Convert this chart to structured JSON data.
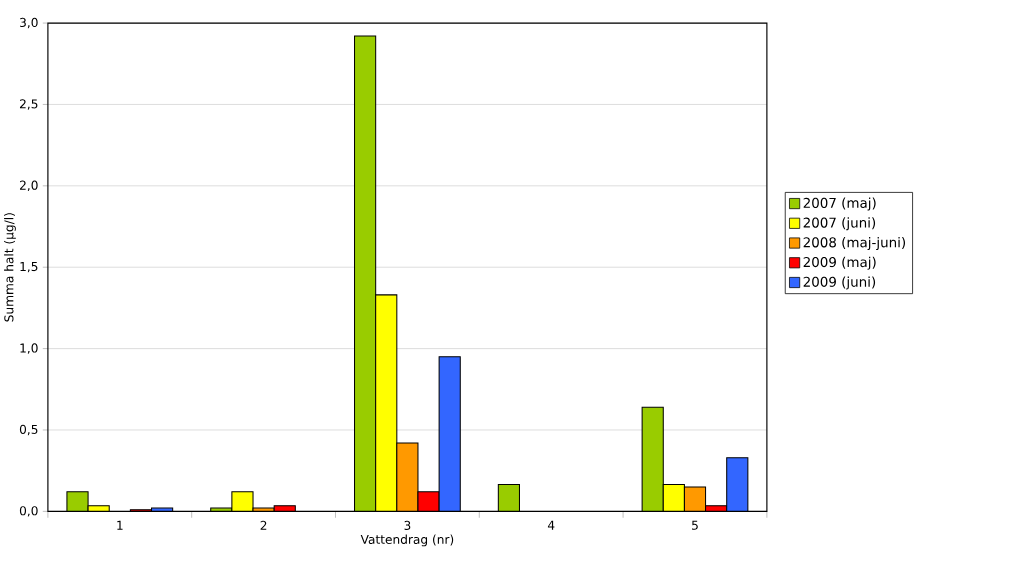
{
  "chart_data": {
    "type": "bar",
    "xlabel": "Vattendrag (nr)",
    "ylabel": "Summa halt (µg/l)",
    "categories": [
      "1",
      "2",
      "3",
      "4",
      "5"
    ],
    "series": [
      {
        "name": "2007 (maj)",
        "color": "#99cc00",
        "values": [
          0.12,
          0.02,
          2.92,
          0.165,
          0.64
        ]
      },
      {
        "name": "2007 (juni)",
        "color": "#ffff00",
        "values": [
          0.035,
          0.12,
          1.33,
          null,
          0.165
        ]
      },
      {
        "name": "2008 (maj-juni)",
        "color": "#ff9900",
        "values": [
          null,
          0.02,
          0.42,
          null,
          0.15
        ]
      },
      {
        "name": "2009 (maj)",
        "color": "#ff0000",
        "values": [
          0.01,
          0.035,
          0.12,
          null,
          0.035
        ]
      },
      {
        "name": "2009 (juni)",
        "color": "#3366ff",
        "values": [
          0.02,
          null,
          0.95,
          null,
          0.33
        ]
      }
    ],
    "ylim": [
      0,
      3.0
    ],
    "yticks": [
      {
        "value": 0,
        "label": "0,0"
      },
      {
        "value": 0.5,
        "label": "0,5"
      },
      {
        "value": 1.0,
        "label": "1,0"
      },
      {
        "value": 1.5,
        "label": "1,5"
      },
      {
        "value": 2.0,
        "label": "2,0"
      },
      {
        "value": 2.5,
        "label": "2,5"
      },
      {
        "value": 3.0,
        "label": "3,0"
      }
    ],
    "grid": "y",
    "legend": "right"
  }
}
